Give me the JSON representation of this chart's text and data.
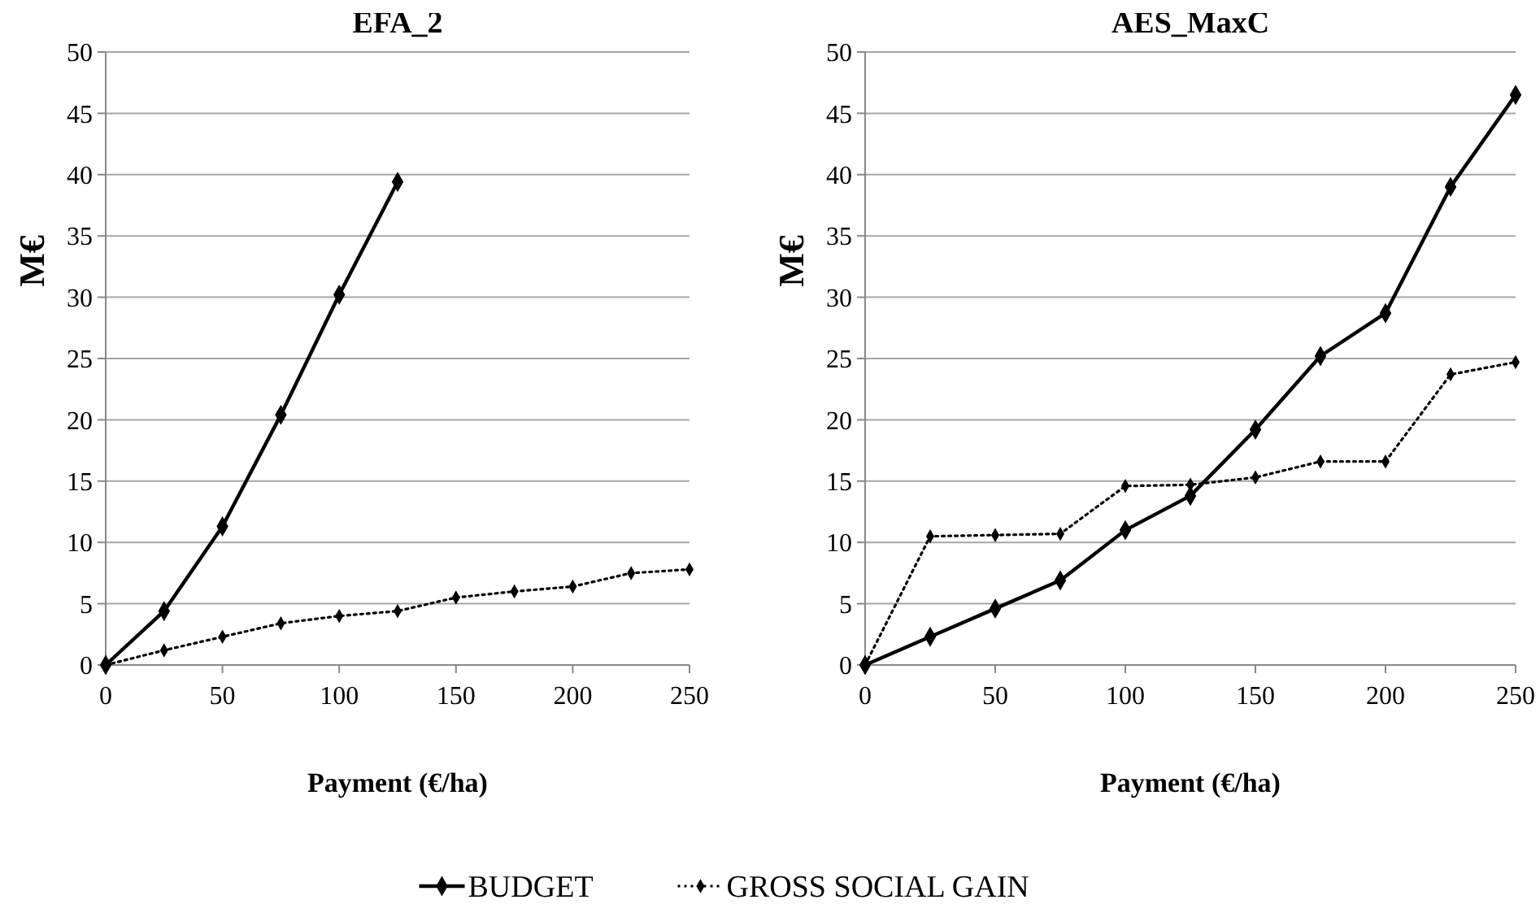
{
  "chart_data": [
    {
      "type": "line",
      "title": "EFA_2",
      "xlabel": "Payment (€/ha)",
      "ylabel": "M€",
      "x": [
        0,
        25,
        50,
        75,
        100,
        125,
        150,
        175,
        200,
        225,
        250
      ],
      "xlim": [
        0,
        250
      ],
      "xticks": [
        0,
        50,
        100,
        150,
        200,
        250
      ],
      "ylim": [
        0,
        50
      ],
      "yticks": [
        0,
        5,
        10,
        15,
        20,
        25,
        30,
        35,
        40,
        45,
        50
      ],
      "grid": "y",
      "legend": "bottom",
      "marker": "diamond",
      "series": [
        {
          "name": "BUDGET",
          "color": "#000000",
          "line_style": "solid",
          "values": [
            0,
            4.4,
            11.3,
            20.4,
            30.2,
            39.4,
            null,
            null,
            null,
            null,
            null
          ]
        },
        {
          "name": "GROSS SOCIAL GAIN",
          "color": "#000000",
          "line_style": "dotted",
          "values": [
            0,
            1.2,
            2.3,
            3.4,
            4.0,
            4.4,
            5.5,
            6.0,
            6.4,
            7.5,
            7.8
          ]
        }
      ]
    },
    {
      "type": "line",
      "title": "AES_MaxC",
      "xlabel": "Payment (€/ha)",
      "ylabel": "M€",
      "x": [
        0,
        25,
        50,
        75,
        100,
        125,
        150,
        175,
        200,
        225,
        250
      ],
      "xlim": [
        0,
        250
      ],
      "xticks": [
        0,
        50,
        100,
        150,
        200,
        250
      ],
      "ylim": [
        0,
        50
      ],
      "yticks": [
        0,
        5,
        10,
        15,
        20,
        25,
        30,
        35,
        40,
        45,
        50
      ],
      "grid": "y",
      "marker": "diamond",
      "series": [
        {
          "color": "#000000",
          "line_style": "solid",
          "values": [
            0,
            2.3,
            4.6,
            6.9,
            11.0,
            13.8,
            19.2,
            25.2,
            28.7,
            39.0,
            46.5
          ]
        },
        {
          "color": "#000000",
          "line_style": "dotted",
          "values": [
            0,
            10.5,
            10.6,
            10.7,
            14.6,
            14.7,
            15.3,
            16.6,
            16.6,
            23.7,
            24.7
          ]
        }
      ]
    }
  ]
}
